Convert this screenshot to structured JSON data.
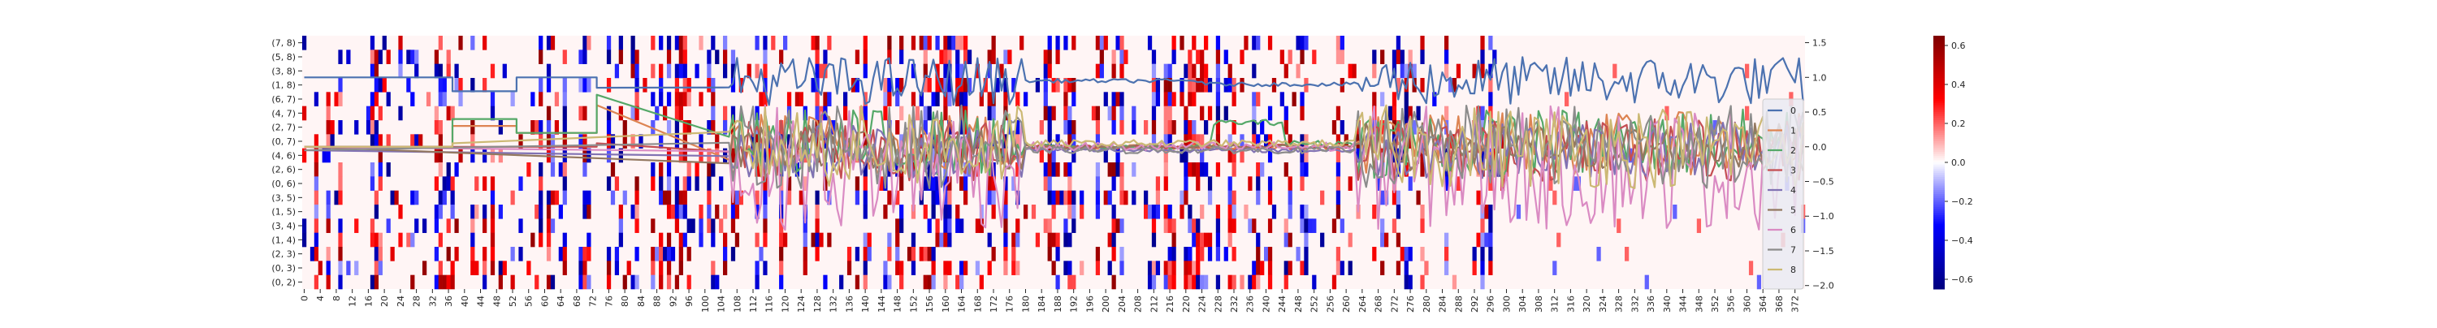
{
  "chart_data": {
    "type": "heatmap",
    "heatmap": {
      "rows": [
        "(7, 8)",
        "(5, 8)",
        "(3, 8)",
        "(1, 8)",
        "(6, 7)",
        "(4, 7)",
        "(2, 7)",
        "(0, 7)",
        "(4, 6)",
        "(2, 6)",
        "(0, 6)",
        "(3, 5)",
        "(1, 5)",
        "(3, 4)",
        "(1, 4)",
        "(2, 3)",
        "(0, 3)",
        "(0, 2)"
      ],
      "ticks": [
        "(7, 8)",
        "(5, 8)",
        "(3, 8)",
        "(1, 8)",
        "(6, 7)",
        "(4, 7)",
        "(2, 7)",
        "(0, 7)",
        "(4, 6)",
        "(2, 6)",
        "(0, 6)",
        "(3, 5)",
        "(1, 5)",
        "(3, 4)",
        "(1, 4)",
        "(2, 3)",
        "(0, 3)",
        "(0, 2)"
      ],
      "n_cols": 375,
      "x_ticks": [
        "0",
        "4",
        "8",
        "12",
        "16",
        "20",
        "24",
        "28",
        "32",
        "36",
        "40",
        "44",
        "48",
        "52",
        "56",
        "60",
        "64",
        "68",
        "72",
        "76",
        "80",
        "84",
        "88",
        "92",
        "96",
        "100",
        "104",
        "108",
        "112",
        "116",
        "120",
        "124",
        "128",
        "132",
        "136",
        "140",
        "144",
        "148",
        "152",
        "156",
        "160",
        "164",
        "168",
        "172",
        "176",
        "180",
        "184",
        "188",
        "192",
        "196",
        "200",
        "204",
        "208",
        "212",
        "216",
        "220",
        "224",
        "228",
        "232",
        "236",
        "240",
        "244",
        "248",
        "252",
        "256",
        "260",
        "264",
        "268",
        "272",
        "276",
        "280",
        "284",
        "288",
        "292",
        "296",
        "300",
        "304",
        "308",
        "312",
        "316",
        "320",
        "324",
        "328",
        "332",
        "336",
        "340",
        "344",
        "348",
        "352",
        "356",
        "360",
        "364",
        "368",
        "372"
      ],
      "active_columns_end": 300,
      "colorbar": {
        "vmin": -0.65,
        "vmax": 0.65,
        "ticks": [
          "0.6",
          "0.4",
          "0.2",
          "0.0",
          "−0.2",
          "−0.4",
          "−0.6"
        ],
        "tick_values": [
          0.6,
          0.4,
          0.2,
          0.0,
          -0.2,
          -0.4,
          -0.6
        ]
      }
    },
    "lines": {
      "y_axis_right": {
        "ylim": [
          -2.05,
          1.6
        ],
        "ticks": [
          "1.5",
          "1.0",
          "0.5",
          "0.0",
          "−0.5",
          "−1.0",
          "−1.5",
          "−2.0"
        ],
        "tick_values": [
          1.5,
          1.0,
          0.5,
          0.0,
          -0.5,
          -1.0,
          -1.5,
          -2.0
        ]
      },
      "legend": {
        "placement": "lower-right",
        "labels": [
          "0",
          "1",
          "2",
          "3",
          "4",
          "5",
          "6",
          "7",
          "8"
        ]
      },
      "series": [
        {
          "name": "0",
          "color": "#4c72b0",
          "segments": [
            [
              0,
              1.0
            ],
            [
              37,
              1.0
            ],
            [
              37,
              0.8
            ],
            [
              53,
              0.8
            ],
            [
              53,
              1.0
            ],
            [
              73,
              1.0
            ],
            [
              73,
              0.85
            ],
            [
              106,
              0.85
            ],
            [
              106,
              0.9
            ],
            [
              180,
              0.9
            ],
            [
              180,
              0.95
            ],
            [
              225,
              0.95
            ],
            [
              225,
              0.9
            ],
            [
              263,
              0.9
            ],
            [
              263,
              0.85
            ],
            [
              300,
              0.85
            ]
          ],
          "noisy_from": 106,
          "noisy_to": 375,
          "noise_center": 0.95,
          "noise_amp": 0.35
        },
        {
          "name": "1",
          "color": "#dd8452",
          "segments": [
            [
              0,
              0.0
            ],
            [
              37,
              0.0
            ],
            [
              37,
              0.3
            ],
            [
              53,
              0.3
            ],
            [
              53,
              0.2
            ],
            [
              73,
              0.2
            ],
            [
              73,
              0.6
            ],
            [
              106,
              0.6
            ],
            [
              106,
              0.0
            ],
            [
              263,
              0.0
            ],
            [
              263,
              0.6
            ],
            [
              300,
              0.6
            ]
          ],
          "noisy_from": 106,
          "noisy_to": 375,
          "noise_center": 0.05,
          "noise_amp": 0.45
        },
        {
          "name": "2",
          "color": "#55a868",
          "segments": [
            [
              0,
              0.0
            ],
            [
              37,
              0.0
            ],
            [
              37,
              0.4
            ],
            [
              53,
              0.4
            ],
            [
              53,
              0.2
            ],
            [
              73,
              0.2
            ],
            [
              73,
              0.75
            ],
            [
              106,
              0.75
            ],
            [
              106,
              0.0
            ],
            [
              227,
              0.0
            ],
            [
              227,
              0.35
            ],
            [
              245,
              0.35
            ],
            [
              245,
              0.05
            ],
            [
              263,
              0.05
            ],
            [
              263,
              0.85
            ],
            [
              300,
              0.85
            ]
          ],
          "noisy_from": 106,
          "noisy_to": 375,
          "noise_center": 0.05,
          "noise_amp": 0.5
        },
        {
          "name": "3",
          "color": "#c44e52",
          "segments": [
            [
              0,
              0.0
            ],
            [
              73,
              0.0
            ],
            [
              73,
              0.05
            ],
            [
              106,
              0.05
            ],
            [
              106,
              0.0
            ],
            [
              300,
              0.0
            ]
          ],
          "noisy_from": 106,
          "noisy_to": 375,
          "noise_center": -0.05,
          "noise_amp": 0.45
        },
        {
          "name": "4",
          "color": "#8172b3",
          "segments": [
            [
              0,
              -0.05
            ],
            [
              300,
              -0.05
            ]
          ],
          "noisy_from": 106,
          "noisy_to": 375,
          "noise_center": -0.05,
          "noise_amp": 0.4
        },
        {
          "name": "5",
          "color": "#937860",
          "segments": [
            [
              0,
              0.0
            ],
            [
              300,
              0.0
            ]
          ],
          "noisy_from": 106,
          "noisy_to": 375,
          "noise_center": 0.0,
          "noise_amp": 0.35
        },
        {
          "name": "6",
          "color": "#da8bc3",
          "segments": [
            [
              0,
              0.0
            ],
            [
              300,
              0.0
            ]
          ],
          "noisy_from": 106,
          "noisy_to": 375,
          "noise_center": -0.3,
          "noise_amp": 0.9
        },
        {
          "name": "7",
          "color": "#8c8c8c",
          "segments": [
            [
              0,
              -0.05
            ],
            [
              300,
              -0.05
            ]
          ],
          "noisy_from": 106,
          "noisy_to": 375,
          "noise_center": 0.0,
          "noise_amp": 0.6
        },
        {
          "name": "8",
          "color": "#ccb974",
          "segments": [
            [
              0,
              0.0
            ],
            [
              37,
              0.0
            ],
            [
              37,
              0.05
            ],
            [
              300,
              0.05
            ]
          ],
          "noisy_from": 106,
          "noisy_to": 375,
          "noise_center": 0.0,
          "noise_amp": 0.6
        }
      ]
    }
  }
}
